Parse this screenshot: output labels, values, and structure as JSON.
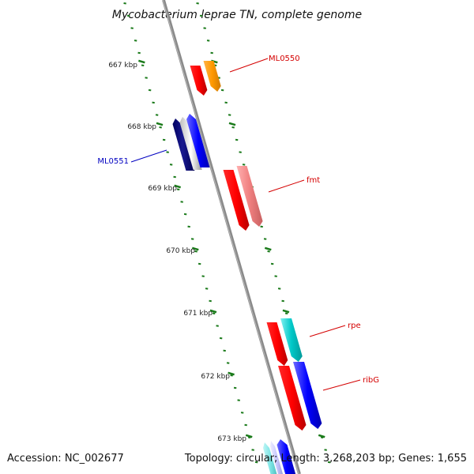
{
  "title": "Mycobacterium leprae TN, complete genome",
  "footer": {
    "accession": "Accession: NC_002677",
    "topology": "Topology: circular; Length: 3,268,203 bp; Genes: 1,655"
  },
  "colors": {
    "backbone": "#8a8a8a",
    "tick": "#1a7a1a",
    "forward_label": "#d40000",
    "reverse_label": "#0000c0"
  },
  "ticks": [
    {
      "label": "667 kbp"
    },
    {
      "label": "668 kbp"
    },
    {
      "label": "669 kbp"
    },
    {
      "label": "670 kbp"
    },
    {
      "label": "671 kbp"
    },
    {
      "label": "672 kbp"
    },
    {
      "label": "673 kbp"
    }
  ],
  "genes": [
    {
      "label": "ML0550",
      "strand": "forward",
      "color": "#ff9900"
    },
    {
      "label": "ML0551",
      "strand": "reverse",
      "color": "#000080"
    },
    {
      "label": "fmt",
      "strand": "forward",
      "color": "#f08080"
    },
    {
      "label": "rpe",
      "strand": "forward",
      "color": "#00c8c8"
    },
    {
      "label": "ribG",
      "strand": "forward",
      "color": "#0000ff"
    }
  ]
}
